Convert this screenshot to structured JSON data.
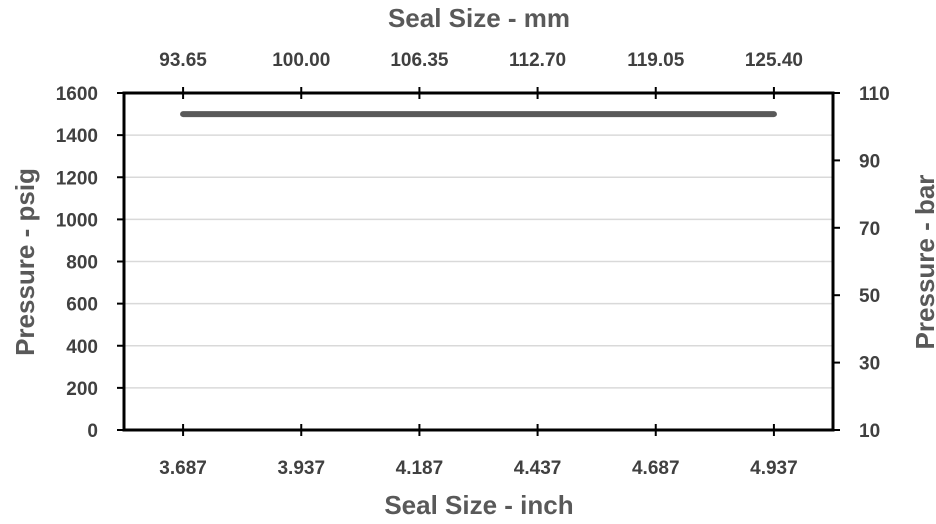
{
  "chart_data": {
    "type": "line",
    "title": "",
    "xlabel": "Seal Size - inch",
    "x2label": "Seal Size - mm",
    "ylabel": "Pressure - psig",
    "y2label": "Pressure - bar",
    "x_ticks": [
      "3.687",
      "3.937",
      "4.187",
      "4.437",
      "4.687",
      "4.937"
    ],
    "x2_ticks": [
      "93.65",
      "100.00",
      "106.35",
      "112.70",
      "119.05",
      "125.40"
    ],
    "y_ticks": [
      "0",
      "200",
      "400",
      "600",
      "800",
      "1000",
      "1200",
      "1400",
      "1600"
    ],
    "y2_ticks": [
      "10",
      "30",
      "50",
      "70",
      "90",
      "110"
    ],
    "xlim": [
      3.562,
      5.062
    ],
    "ylim": [
      0,
      1600
    ],
    "y2lim": [
      10,
      110
    ],
    "grid": true,
    "series": [
      {
        "color": "#595959",
        "x": [
          3.687,
          4.937
        ],
        "y": [
          1500,
          1500
        ]
      }
    ]
  }
}
